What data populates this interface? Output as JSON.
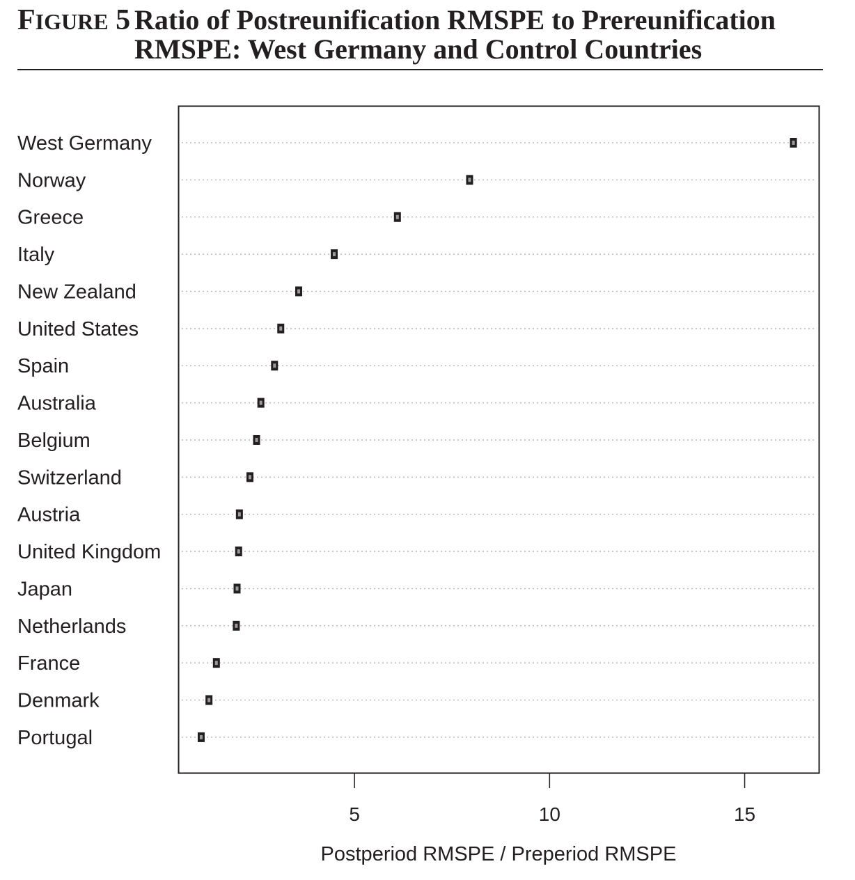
{
  "figure": {
    "label": "Figure 5",
    "title": "Ratio of Postreunification RMSPE to Prereunification RMSPE: West Germany and Control Countries"
  },
  "chart_data": {
    "type": "scatter",
    "subtype": "dot-plot",
    "categories": [
      "West Germany",
      "Norway",
      "Greece",
      "Italy",
      "New Zealand",
      "United States",
      "Spain",
      "Australia",
      "Belgium",
      "Switzerland",
      "Austria",
      "United Kingdom",
      "Japan",
      "Netherlands",
      "France",
      "Denmark",
      "Portugal"
    ],
    "values": [
      16.25,
      7.95,
      6.1,
      4.48,
      3.57,
      3.11,
      2.95,
      2.6,
      2.49,
      2.32,
      2.05,
      2.03,
      1.99,
      1.97,
      1.46,
      1.27,
      1.07
    ],
    "xlabel": "Postperiod RMSPE / Preperiod RMSPE",
    "ylabel": "",
    "xlim": [
      0.5,
      16.9
    ],
    "xticks": [
      5,
      10,
      15
    ],
    "grid": "horizontal dotted guide lines",
    "marker": "small filled square",
    "colors": {
      "ink": "#231f20",
      "guide": "#b8b8b8"
    }
  }
}
